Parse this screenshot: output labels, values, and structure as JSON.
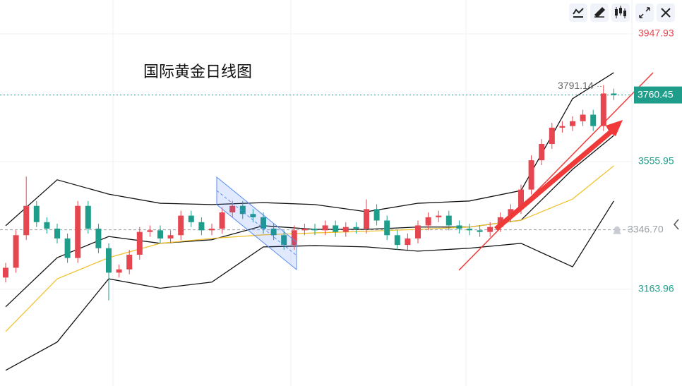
{
  "chart_data": {
    "type": "candlestick",
    "title": "国际黄金日线图",
    "categories": [
      null,
      null,
      null,
      null,
      null,
      null,
      null,
      null,
      null,
      null,
      null,
      null,
      null,
      null,
      null,
      null,
      null,
      null,
      null,
      null,
      null,
      null,
      null,
      null,
      null,
      null,
      null,
      null,
      null,
      null,
      null,
      null,
      null,
      null,
      null,
      null,
      null,
      null,
      null,
      null,
      null,
      null,
      null,
      null,
      null,
      null,
      null,
      null,
      null,
      null,
      null,
      null,
      null,
      null,
      null,
      null,
      null,
      null,
      null,
      null
    ],
    "open": [
      3200,
      3230,
      3330,
      3420,
      3370,
      3350,
      3320,
      3260,
      3420,
      3350,
      3290,
      3215,
      3225,
      3270,
      3340,
      3345,
      3320,
      3330,
      3390,
      3370,
      3345,
      3350,
      3400,
      3420,
      3395,
      3385,
      3350,
      3330,
      3300,
      3345,
      3350,
      3345,
      3360,
      3340,
      3355,
      3350,
      3410,
      3375,
      3330,
      3300,
      3320,
      3360,
      3385,
      3390,
      3360,
      3350,
      3345,
      3340,
      3355,
      3385,
      3410,
      3470,
      3560,
      3610,
      3660,
      3665,
      3680,
      3700,
      3665,
      3765
    ],
    "high": [
      3245,
      3345,
      3510,
      3435,
      3385,
      3365,
      3335,
      3435,
      3435,
      3365,
      3305,
      3240,
      3285,
      3355,
      3360,
      3360,
      3345,
      3405,
      3405,
      3385,
      3365,
      3415,
      3435,
      3435,
      3410,
      3400,
      3365,
      3345,
      3360,
      3365,
      3365,
      3375,
      3375,
      3370,
      3370,
      3440,
      3425,
      3390,
      3345,
      3335,
      3375,
      3400,
      3405,
      3405,
      3375,
      3365,
      3360,
      3370,
      3400,
      3425,
      3485,
      3575,
      3625,
      3675,
      3680,
      3695,
      3715,
      3715,
      3791.14,
      3780
    ],
    "low": [
      3185,
      3215,
      3315,
      3355,
      3335,
      3305,
      3245,
      3245,
      3335,
      3275,
      3130,
      3200,
      3210,
      3255,
      3325,
      3305,
      3305,
      3315,
      3355,
      3330,
      3330,
      3335,
      3385,
      3380,
      3370,
      3335,
      3315,
      3285,
      3285,
      3330,
      3330,
      3330,
      3325,
      3325,
      3335,
      3335,
      3360,
      3315,
      3285,
      3285,
      3305,
      3345,
      3370,
      3345,
      3335,
      3330,
      3325,
      3325,
      3340,
      3370,
      3395,
      3455,
      3545,
      3595,
      3645,
      3650,
      3665,
      3650,
      3650,
      3745
    ],
    "close": [
      3230,
      3330,
      3420,
      3370,
      3350,
      3320,
      3260,
      3420,
      3350,
      3290,
      3215,
      3225,
      3270,
      3340,
      3345,
      3320,
      3330,
      3390,
      3370,
      3345,
      3350,
      3400,
      3420,
      3395,
      3385,
      3350,
      3330,
      3300,
      3345,
      3350,
      3345,
      3360,
      3340,
      3355,
      3350,
      3410,
      3375,
      3330,
      3300,
      3320,
      3360,
      3385,
      3390,
      3360,
      3350,
      3345,
      3340,
      3355,
      3385,
      3410,
      3470,
      3560,
      3610,
      3660,
      3665,
      3680,
      3700,
      3665,
      3765,
      3760
    ],
    "up_color": "#e6464f",
    "down_color": "#1e9e8a",
    "lines": [
      {
        "color": "#111111",
        "x": [
          0,
          5,
          10,
          15,
          20,
          25,
          30,
          35,
          40,
          45,
          50,
          55,
          59
        ],
        "values": [
          3359,
          3500,
          3456,
          3428,
          3424,
          3430,
          3424,
          3402,
          3428,
          3435,
          3467,
          3749,
          3829
        ]
      },
      {
        "color": "#111111",
        "x": [
          0,
          5,
          10,
          15,
          20,
          25,
          30,
          35,
          40,
          45,
          50,
          55,
          59
        ],
        "values": [
          3110,
          3261,
          3326,
          3305,
          3316,
          3359,
          3348,
          3348,
          3355,
          3355,
          3376,
          3532,
          3636
        ]
      },
      {
        "color": "#111111",
        "x": [
          0,
          5,
          10,
          15,
          20,
          25,
          30,
          35,
          40,
          45,
          50,
          55,
          59
        ],
        "values": [
          2915,
          3002,
          3196,
          3167,
          3186,
          3294,
          3298,
          3294,
          3281,
          3290,
          3305,
          3233,
          3435
        ]
      },
      {
        "color": "#f2c230",
        "x": [
          0,
          5,
          10,
          15,
          20,
          25,
          30,
          35,
          40,
          45,
          50,
          55,
          59
        ],
        "values": [
          3034,
          3196,
          3261,
          3305,
          3320,
          3331,
          3337,
          3342,
          3348,
          3355,
          3376,
          3441,
          3543
        ]
      }
    ],
    "ylim": [
      2867,
      4052
    ],
    "yticks": [
      3163.96,
      3555.95,
      3947.93
    ],
    "ytick_colors": [
      "#1e9e8a",
      "#1e9e8a",
      "#e6464f"
    ],
    "price_lines": [
      {
        "value": 3760.45,
        "color": "#1e9e8a"
      },
      {
        "value": {
          "value": 3346.7,
          "label": "3346.70"
        },
        "color": "#9aa0a6"
      }
    ],
    "grid": true
  }
}
